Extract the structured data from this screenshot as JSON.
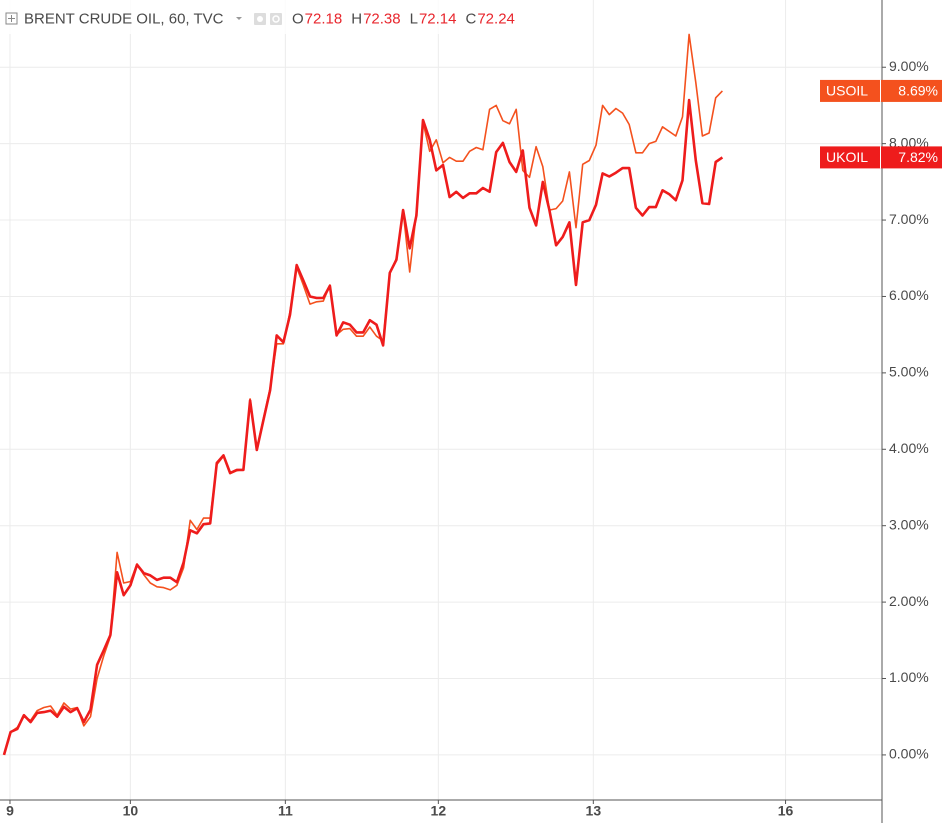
{
  "header": {
    "title": "BRENT CRUDE OIL, 60, TVC",
    "ohlc": [
      {
        "label": "O",
        "value": 72.18
      },
      {
        "label": "H",
        "value": 72.38
      },
      {
        "label": "L",
        "value": 72.14
      },
      {
        "label": "C",
        "value": 72.24
      }
    ]
  },
  "chart_data": {
    "type": "line",
    "x": [
      0,
      1,
      2,
      3,
      4,
      5,
      6,
      7,
      8,
      9,
      10,
      11,
      12,
      13,
      14,
      15,
      16,
      17,
      18,
      19,
      20,
      21,
      22,
      23,
      24,
      25,
      26,
      27,
      28,
      29,
      30,
      31,
      32,
      33,
      34,
      35,
      36,
      37,
      38,
      39,
      40,
      41,
      42,
      43,
      44,
      45,
      46,
      47,
      48,
      49,
      50,
      51,
      52,
      53,
      54,
      55,
      56,
      57,
      58,
      59,
      60,
      61,
      62,
      63,
      64,
      65,
      66,
      67,
      68,
      69,
      70,
      71,
      72,
      73,
      74,
      75,
      76,
      77,
      78,
      79,
      80,
      81,
      82,
      83,
      84,
      85,
      86,
      87,
      88,
      89,
      90,
      91,
      92,
      93,
      94,
      95,
      96,
      97,
      98,
      99,
      100,
      101,
      102,
      103,
      104,
      105,
      106,
      107,
      108
    ],
    "xlim": [
      -0.6,
      132
    ],
    "xticks": [
      {
        "value": 0.9,
        "label": "9"
      },
      {
        "value": 19,
        "label": "10"
      },
      {
        "value": 42.3,
        "label": "11"
      },
      {
        "value": 65.3,
        "label": "12"
      },
      {
        "value": 88.6,
        "label": "13"
      },
      {
        "value": 117.5,
        "label": "16"
      }
    ],
    "ylim": [
      -0.59,
      9.88
    ],
    "yticks": [
      {
        "value": 0,
        "label": "0.00%"
      },
      {
        "value": 1,
        "label": "1.00%"
      },
      {
        "value": 2,
        "label": "2.00%"
      },
      {
        "value": 3,
        "label": "3.00%"
      },
      {
        "value": 4,
        "label": "4.00%"
      },
      {
        "value": 5,
        "label": "5.00%"
      },
      {
        "value": 6,
        "label": "6.00%"
      },
      {
        "value": 7,
        "label": "7.00%"
      },
      {
        "value": 8,
        "label": "8.00%"
      },
      {
        "value": 9,
        "label": "9.00%"
      }
    ],
    "grid": true,
    "series": [
      {
        "name": "USOIL",
        "color": "#f4511e",
        "badge": {
          "value": 8.69,
          "label": "8.69%"
        },
        "values": [
          0,
          0.3,
          0.36,
          0.5,
          0.45,
          0.58,
          0.62,
          0.64,
          0.52,
          0.68,
          0.6,
          0.62,
          0.38,
          0.5,
          1.0,
          1.3,
          1.55,
          2.65,
          2.25,
          2.27,
          2.5,
          2.36,
          2.25,
          2.2,
          2.19,
          2.16,
          2.22,
          2.45,
          3.07,
          2.95,
          3.1,
          3.1,
          3.8,
          3.91,
          3.68,
          3.72,
          3.74,
          4.66,
          4.0,
          4.4,
          4.8,
          5.38,
          5.38,
          5.8,
          6.38,
          6.15,
          5.9,
          5.93,
          5.94,
          6.15,
          5.5,
          5.57,
          5.58,
          5.48,
          5.48,
          5.6,
          5.48,
          5.42,
          6.3,
          6.5,
          7.12,
          6.32,
          7.1,
          8.28,
          7.9,
          8.05,
          7.75,
          7.82,
          7.77,
          7.77,
          7.9,
          7.95,
          7.92,
          8.45,
          8.5,
          8.3,
          8.26,
          8.45,
          7.65,
          7.56,
          7.96,
          7.7,
          7.13,
          7.15,
          7.25,
          7.63,
          6.9,
          7.73,
          7.78,
          7.98,
          8.5,
          8.38,
          8.46,
          8.4,
          8.25,
          7.88,
          7.88,
          8.0,
          8.03,
          8.22,
          8.16,
          8.1,
          8.35,
          9.43,
          8.8,
          8.1,
          8.14,
          8.6,
          8.69
        ]
      },
      {
        "name": "UKOIL",
        "color": "#ee1c1c",
        "badge": {
          "value": 7.82,
          "label": "7.82%"
        },
        "values": [
          0,
          0.3,
          0.34,
          0.52,
          0.43,
          0.55,
          0.56,
          0.58,
          0.5,
          0.63,
          0.56,
          0.61,
          0.43,
          0.59,
          1.18,
          1.37,
          1.57,
          2.39,
          2.09,
          2.22,
          2.49,
          2.38,
          2.35,
          2.29,
          2.32,
          2.32,
          2.26,
          2.52,
          2.94,
          2.9,
          3.02,
          3.03,
          3.82,
          3.92,
          3.69,
          3.73,
          3.73,
          4.64,
          3.99,
          4.38,
          4.77,
          5.49,
          5.4,
          5.76,
          6.41,
          6.21,
          6.0,
          5.98,
          5.98,
          6.14,
          5.49,
          5.66,
          5.63,
          5.53,
          5.53,
          5.69,
          5.63,
          5.36,
          6.31,
          6.48,
          7.13,
          6.63,
          7.06,
          8.31,
          8.05,
          7.65,
          7.72,
          7.3,
          7.37,
          7.29,
          7.35,
          7.35,
          7.42,
          7.37,
          7.89,
          8.01,
          7.76,
          7.63,
          7.91,
          7.16,
          6.93,
          7.5,
          7.13,
          6.67,
          6.78,
          6.97,
          6.15,
          6.97,
          7.0,
          7.2,
          7.61,
          7.57,
          7.62,
          7.68,
          7.68,
          7.16,
          7.06,
          7.17,
          7.17,
          7.39,
          7.34,
          7.26,
          7.52,
          8.57,
          7.78,
          7.22,
          7.21,
          7.76,
          7.82
        ]
      }
    ]
  }
}
